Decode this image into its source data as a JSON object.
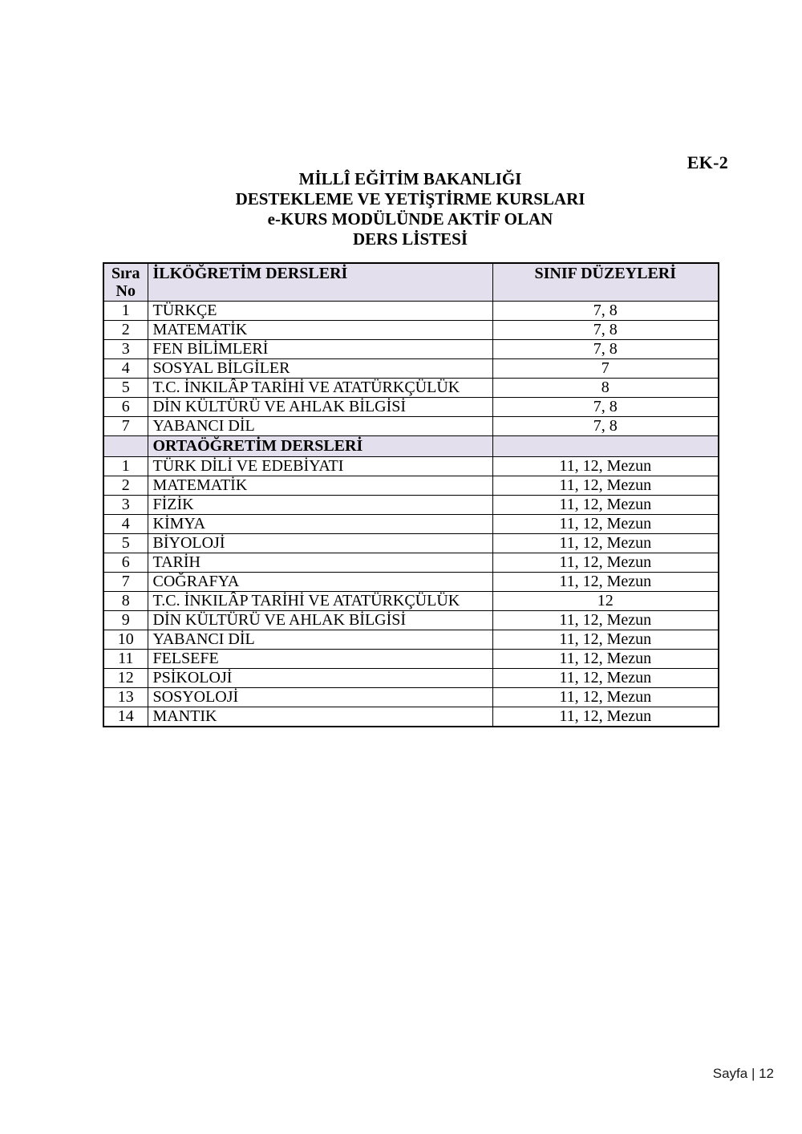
{
  "page": {
    "tag": "EK-2",
    "title_lines": [
      "MİLLÎ EĞİTİM BAKANLIĞI",
      "DESTEKLEME VE YETİŞTİRME KURSLARI",
      "e-KURS MODÜLÜNDE AKTİF OLAN",
      "DERS LİSTESİ"
    ],
    "footer": "Sayfa | 12"
  },
  "colors": {
    "section_bg": "#E4DFEC",
    "border": "#000000",
    "text": "#000000"
  },
  "table": {
    "header": {
      "col_no": "Sıra\nNo",
      "col_course": "İLKÖĞRETİM DERSLERİ",
      "col_levels": "SINIF DÜZEYLERİ"
    },
    "section_header": "ORTAÖĞRETİM DERSLERİ",
    "ilkogretim_rows": [
      {
        "no": "1",
        "course": "TÜRKÇE",
        "levels": "7, 8"
      },
      {
        "no": "2",
        "course": "MATEMATİK",
        "levels": "7, 8"
      },
      {
        "no": "3",
        "course": "FEN BİLİMLERİ",
        "levels": "7, 8"
      },
      {
        "no": "4",
        "course": "SOSYAL BİLGİLER",
        "levels": "7"
      },
      {
        "no": "5",
        "course": "T.C. İNKILÂP TARİHİ VE ATATÜRKÇÜLÜK",
        "levels": "8"
      },
      {
        "no": "6",
        "course": "DİN KÜLTÜRÜ VE AHLAK BİLGİSİ",
        "levels": "7, 8"
      },
      {
        "no": "7",
        "course": "YABANCI DİL",
        "levels": "7, 8"
      }
    ],
    "ortaogretim_rows": [
      {
        "no": "1",
        "course": "TÜRK DİLİ VE EDEBİYATI",
        "levels": "11, 12, Mezun"
      },
      {
        "no": "2",
        "course": "MATEMATİK",
        "levels": "11, 12, Mezun"
      },
      {
        "no": "3",
        "course": "FİZİK",
        "levels": "11, 12, Mezun"
      },
      {
        "no": "4",
        "course": "KİMYA",
        "levels": "11, 12, Mezun"
      },
      {
        "no": "5",
        "course": "BİYOLOJİ",
        "levels": "11, 12, Mezun"
      },
      {
        "no": "6",
        "course": "TARİH",
        "levels": "11, 12, Mezun"
      },
      {
        "no": "7",
        "course": "COĞRAFYA",
        "levels": "11, 12, Mezun"
      },
      {
        "no": "8",
        "course": "T.C. İNKILÂP TARİHİ VE ATATÜRKÇÜLÜK",
        "levels": "12"
      },
      {
        "no": "9",
        "course": "DİN KÜLTÜRÜ VE AHLAK BİLGİSİ",
        "levels": "11, 12, Mezun"
      },
      {
        "no": "10",
        "course": "YABANCI DİL",
        "levels": "11, 12, Mezun"
      },
      {
        "no": "11",
        "course": "FELSEFE",
        "levels": "11, 12, Mezun"
      },
      {
        "no": "12",
        "course": "PSİKOLOJİ",
        "levels": "11, 12, Mezun"
      },
      {
        "no": "13",
        "course": "SOSYOLOJİ",
        "levels": "11, 12, Mezun"
      },
      {
        "no": "14",
        "course": "MANTIK",
        "levels": "11, 12, Mezun"
      }
    ]
  }
}
